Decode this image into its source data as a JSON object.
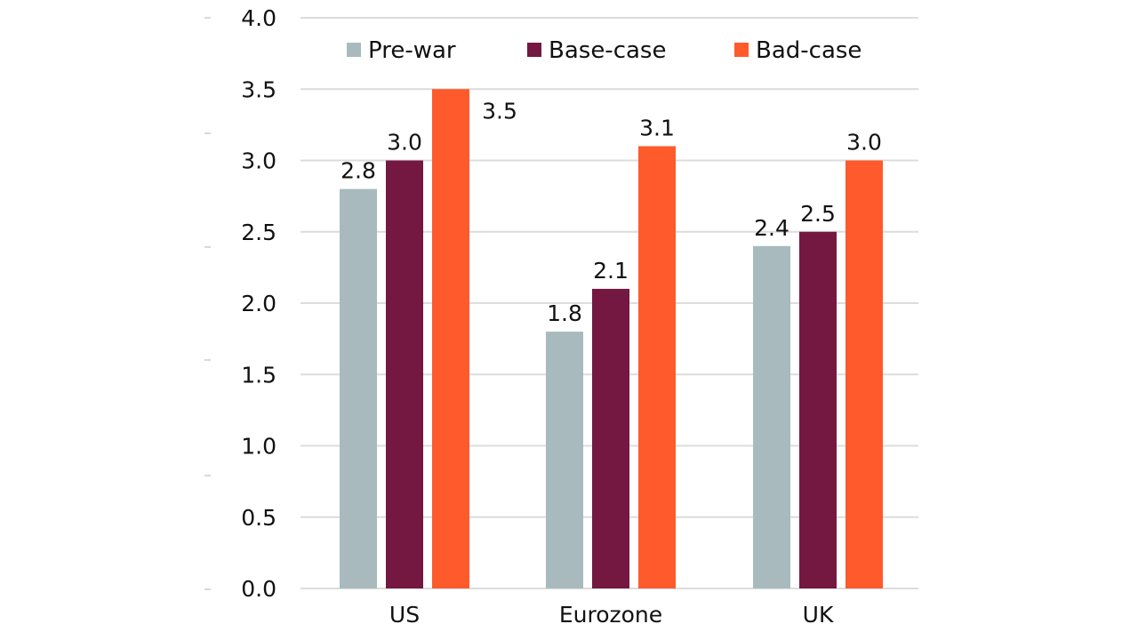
{
  "chart_data": {
    "type": "bar",
    "title": "",
    "xlabel": "",
    "ylabel": "",
    "categories": [
      "US",
      "Eurozone",
      "UK"
    ],
    "series": [
      {
        "name": "Pre-war",
        "color": "#a8babd",
        "values": [
          2.8,
          1.8,
          2.4
        ],
        "labels": [
          "2.8",
          "1.8",
          "2.4"
        ]
      },
      {
        "name": "Base-case",
        "color": "#741841",
        "values": [
          3.0,
          2.1,
          2.5
        ],
        "labels": [
          "3.0",
          "2.1",
          "2.5"
        ]
      },
      {
        "name": "Bad-case",
        "color": "#fe5a2c",
        "values": [
          3.5,
          3.1,
          3.0
        ],
        "labels": [
          "3.5",
          "3.1",
          "3.0"
        ]
      }
    ],
    "ylim": [
      0,
      4.0
    ],
    "yticks": [
      "0.0",
      "0.5",
      "1.0",
      "1.5",
      "2.0",
      "2.5",
      "3.0",
      "3.5",
      "4.0"
    ],
    "grid": true,
    "legend": "top"
  }
}
